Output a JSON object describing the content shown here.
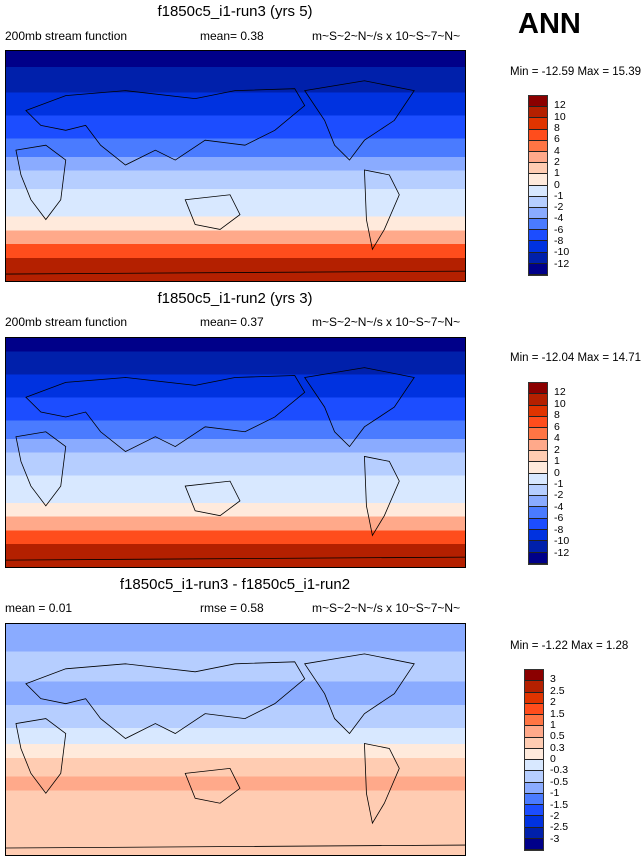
{
  "season": "ANN",
  "colors": [
    "#8b0000",
    "#b42000",
    "#e03400",
    "#ff4d1c",
    "#ff7544",
    "#ffa98a",
    "#ffccb2",
    "#ffeadc",
    "#d8e8ff",
    "#b6ceff",
    "#8aabff",
    "#4a7bff",
    "#1c4dff",
    "#0032e0",
    "#0020ab",
    "#000089"
  ],
  "panels": [
    {
      "title": "f1850c5_i1-run3 (yrs 5)",
      "left": "200mb stream function",
      "mid": "mean=   0.38",
      "units": "m~S~2~N~/s x 10~S~7~N~",
      "minmax": "Min = -12.59 Max =  15.39",
      "levels": [
        "12",
        "10",
        "8",
        "6",
        "4",
        "2",
        "1",
        "0",
        "-1",
        "-2",
        "-4",
        "-6",
        "-8",
        "-10",
        "-12"
      ]
    },
    {
      "title": "f1850c5_i1-run2 (yrs 3)",
      "left": "200mb stream function",
      "mid": "mean=   0.37",
      "units": "m~S~2~N~/s x 10~S~7~N~",
      "minmax": "Min = -12.04 Max =  14.71",
      "levels": [
        "12",
        "10",
        "8",
        "6",
        "4",
        "2",
        "1",
        "0",
        "-1",
        "-2",
        "-4",
        "-6",
        "-8",
        "-10",
        "-12"
      ]
    },
    {
      "title": "f1850c5_i1-run3 - f1850c5_i1-run2",
      "left": "mean =   0.01",
      "mid": "rmse =   0.58",
      "units": "m~S~2~N~/s x 10~S~7~N~",
      "minmax": "Min =  -1.22 Max =   1.28",
      "levels": [
        "3",
        "2.5",
        "2",
        "1.5",
        "1",
        "0.5",
        "0.3",
        "0",
        "-0.3",
        "-0.5",
        "-1",
        "-1.5",
        "-2",
        "-2.5",
        "-3"
      ]
    }
  ]
}
